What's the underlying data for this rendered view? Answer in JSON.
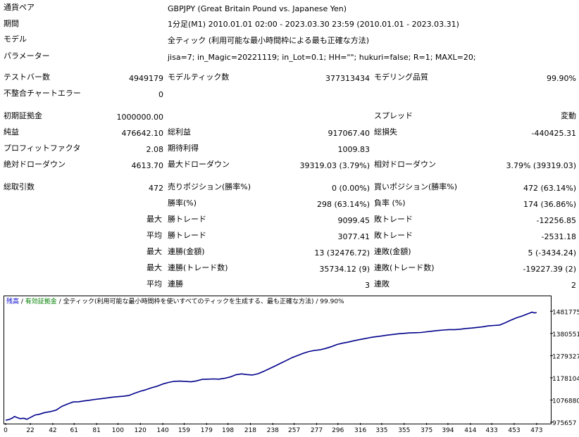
{
  "rows": {
    "symbol": {
      "label": "通貨ペア",
      "value": "GBPJPY (Great Britain Pound vs. Japanese Yen)"
    },
    "period": {
      "label": "期間",
      "value": "1分足(M1) 2010.01.01 02:00 - 2023.03.30 23:59 (2010.01.01 - 2023.03.31)"
    },
    "model": {
      "label": "モデル",
      "value": "全ティック (利用可能な最小時間枠による最も正確な方法)"
    },
    "params": {
      "label": "パラメーター",
      "value": "jisa=7; in_Magic=20221119; in_Lot=0.1; HH=\"\"; hukuri=false; R=1; MAXL=20;"
    }
  },
  "stats": {
    "bars": {
      "label": "テストバー数",
      "value": "4949179"
    },
    "ticks": {
      "label": "モデルティック数",
      "value": "377313434"
    },
    "quality": {
      "label": "モデリング品質",
      "value": "99.90%"
    },
    "mismatch": {
      "label": "不整合チャートエラー",
      "value": "0"
    },
    "deposit": {
      "label": "初期証拠金",
      "value": "1000000.00"
    },
    "spread": {
      "label": "スプレッド",
      "value": "変動"
    },
    "net_profit": {
      "label": "純益",
      "value": "476642.10"
    },
    "gross_profit": {
      "label": "総利益",
      "value": "917067.40"
    },
    "gross_loss": {
      "label": "総損失",
      "value": "-440425.31"
    },
    "profit_factor": {
      "label": "プロフィットファクタ",
      "value": "2.08"
    },
    "expected_payoff": {
      "label": "期待利得",
      "value": "1009.83"
    },
    "abs_dd": {
      "label": "絶対ドローダウン",
      "value": "4613.70"
    },
    "max_dd": {
      "label": "最大ドローダウン",
      "value": "39319.03 (3.79%)"
    },
    "rel_dd": {
      "label": "相対ドローダウン",
      "value": "3.79% (39319.03)"
    },
    "total_trades": {
      "label": "総取引数",
      "value": "472"
    },
    "short_pos": {
      "label": "売りポジション(勝率%)",
      "value": "0 (0.00%)"
    },
    "long_pos": {
      "label": "買いポジション(勝率%)",
      "value": "472 (63.14%)"
    },
    "win_rate": {
      "label": "勝率(%)",
      "value": "298 (63.14%)"
    },
    "loss_rate": {
      "label": "負率 (%)",
      "value": "174 (36.86%)"
    },
    "largest_win": {
      "prefix": "最大",
      "label": "勝トレード",
      "value": "9099.45"
    },
    "largest_loss": {
      "label": "敗トレード",
      "value": "-12256.85"
    },
    "avg_win": {
      "prefix": "平均",
      "label": "勝トレード",
      "value": "3077.41"
    },
    "avg_loss": {
      "label": "敗トレード",
      "value": "-2531.18"
    },
    "max_cons_wins": {
      "prefix": "最大",
      "label": "連勝(金額)",
      "value": "13 (32476.72)"
    },
    "max_cons_losses": {
      "label": "連敗(金額)",
      "value": "5 (-3434.24)"
    },
    "max_cons_profit": {
      "prefix": "最大",
      "label": "連勝(トレード数)",
      "value": "35734.12 (9)"
    },
    "max_cons_loss": {
      "label": "連敗(トレード数)",
      "value": "-19227.39 (2)"
    },
    "avg_cons_wins": {
      "prefix": "平均",
      "label": "連勝",
      "value": "3"
    },
    "avg_cons_losses": {
      "label": "連敗",
      "value": "2"
    }
  },
  "legend": {
    "balance": "残高",
    "sep1": " / ",
    "equity": "有効証拠金",
    "sep2": " / ",
    "model": "全ティック(利用可能な最小時間枠を使いすべてのティックを生成する、最も正確な方法)",
    "sep3": " / ",
    "quality": "99.90%",
    "colors": {
      "balance": "#0000cc",
      "equity": "#008000",
      "text": "#000000"
    }
  },
  "chart_data": {
    "type": "line",
    "series": [
      {
        "name": "残高",
        "color": "#00008b"
      }
    ],
    "xlabel": "",
    "ylabel": "",
    "xlim": [
      0,
      480
    ],
    "ylim": [
      975657,
      1502000
    ],
    "x_ticks": [
      0,
      22,
      42,
      61,
      81,
      100,
      120,
      140,
      159,
      179,
      198,
      218,
      238,
      257,
      277,
      296,
      316,
      335,
      355,
      375,
      394,
      414,
      433,
      453,
      473
    ],
    "y_ticks": [
      1481775,
      1380551,
      1279327,
      1178104,
      1076880,
      975657
    ],
    "points": [
      [
        0,
        985000
      ],
      [
        3,
        988000
      ],
      [
        6,
        995000
      ],
      [
        8,
        1002000
      ],
      [
        10,
        997000
      ],
      [
        13,
        992000
      ],
      [
        16,
        994000
      ],
      [
        19,
        989000
      ],
      [
        22,
        997000
      ],
      [
        26,
        1008000
      ],
      [
        30,
        1012000
      ],
      [
        35,
        1020000
      ],
      [
        40,
        1024000
      ],
      [
        45,
        1031000
      ],
      [
        50,
        1048000
      ],
      [
        55,
        1058000
      ],
      [
        60,
        1068000
      ],
      [
        65,
        1069000
      ],
      [
        70,
        1073000
      ],
      [
        75,
        1076000
      ],
      [
        80,
        1080000
      ],
      [
        85,
        1083000
      ],
      [
        90,
        1086000
      ],
      [
        95,
        1090000
      ],
      [
        100,
        1092000
      ],
      [
        105,
        1094000
      ],
      [
        110,
        1098000
      ],
      [
        115,
        1108000
      ],
      [
        120,
        1117000
      ],
      [
        125,
        1124000
      ],
      [
        130,
        1133000
      ],
      [
        135,
        1140000
      ],
      [
        140,
        1150000
      ],
      [
        145,
        1157000
      ],
      [
        150,
        1162000
      ],
      [
        155,
        1163000
      ],
      [
        160,
        1162000
      ],
      [
        165,
        1160000
      ],
      [
        170,
        1164000
      ],
      [
        175,
        1171000
      ],
      [
        180,
        1172000
      ],
      [
        185,
        1173000
      ],
      [
        190,
        1172000
      ],
      [
        195,
        1176000
      ],
      [
        200,
        1182000
      ],
      [
        205,
        1192000
      ],
      [
        210,
        1196000
      ],
      [
        215,
        1193000
      ],
      [
        220,
        1191000
      ],
      [
        225,
        1197000
      ],
      [
        230,
        1208000
      ],
      [
        235,
        1220000
      ],
      [
        240,
        1232000
      ],
      [
        245,
        1245000
      ],
      [
        250,
        1257000
      ],
      [
        255,
        1270000
      ],
      [
        260,
        1280000
      ],
      [
        265,
        1290000
      ],
      [
        270,
        1298000
      ],
      [
        275,
        1303000
      ],
      [
        280,
        1306000
      ],
      [
        285,
        1312000
      ],
      [
        290,
        1320000
      ],
      [
        295,
        1330000
      ],
      [
        300,
        1336000
      ],
      [
        305,
        1341000
      ],
      [
        310,
        1347000
      ],
      [
        315,
        1352000
      ],
      [
        320,
        1357000
      ],
      [
        325,
        1362000
      ],
      [
        330,
        1366000
      ],
      [
        335,
        1369000
      ],
      [
        340,
        1373000
      ],
      [
        345,
        1376000
      ],
      [
        350,
        1379000
      ],
      [
        355,
        1381000
      ],
      [
        360,
        1383000
      ],
      [
        365,
        1384000
      ],
      [
        370,
        1385000
      ],
      [
        375,
        1388000
      ],
      [
        380,
        1391000
      ],
      [
        385,
        1394000
      ],
      [
        390,
        1396000
      ],
      [
        395,
        1398000
      ],
      [
        400,
        1398000
      ],
      [
        405,
        1400000
      ],
      [
        410,
        1403000
      ],
      [
        415,
        1405000
      ],
      [
        420,
        1408000
      ],
      [
        425,
        1411000
      ],
      [
        430,
        1415000
      ],
      [
        435,
        1417000
      ],
      [
        440,
        1419000
      ],
      [
        445,
        1429000
      ],
      [
        450,
        1441000
      ],
      [
        455,
        1452000
      ],
      [
        460,
        1460000
      ],
      [
        465,
        1470000
      ],
      [
        469,
        1478000
      ],
      [
        471,
        1474000
      ],
      [
        473,
        1476000
      ]
    ]
  }
}
